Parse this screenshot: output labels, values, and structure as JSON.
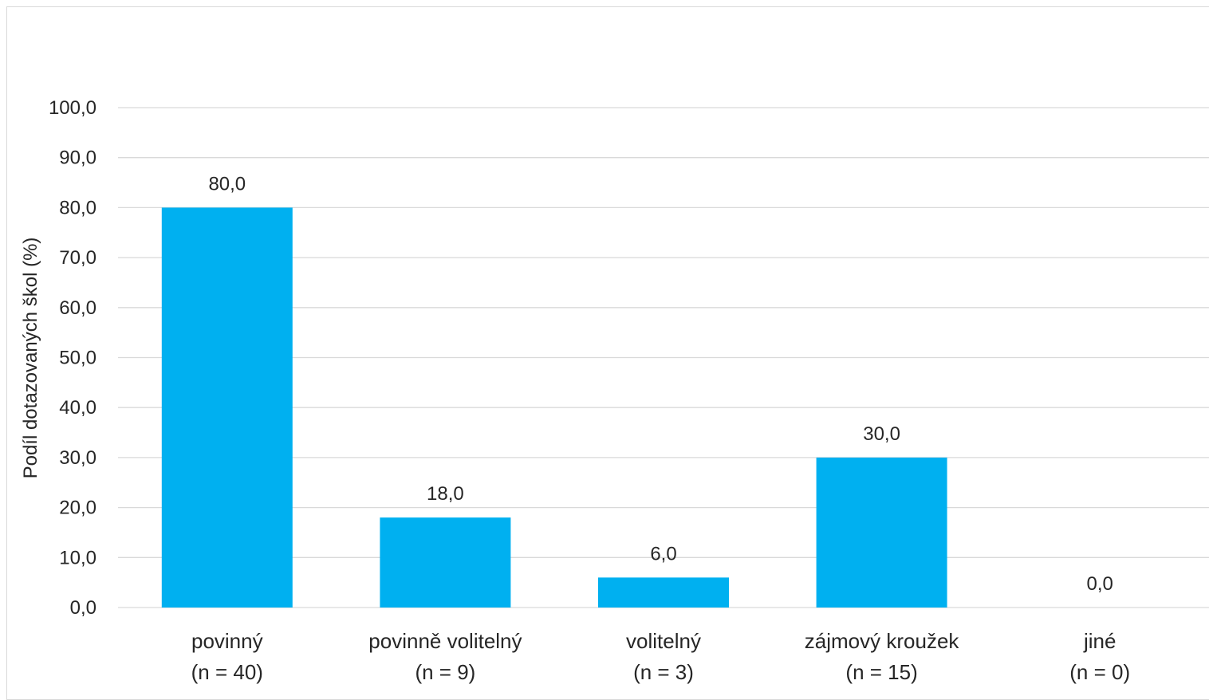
{
  "chart_data": {
    "type": "bar",
    "categories": [
      [
        "povinný",
        "(n = 40)"
      ],
      [
        "povinně volitelný",
        "(n = 9)"
      ],
      [
        "volitelný",
        "(n = 3)"
      ],
      [
        "zájmový kroužek",
        "(n = 15)"
      ],
      [
        "jiné",
        "(n = 0)"
      ]
    ],
    "values": [
      80.0,
      18.0,
      6.0,
      30.0,
      0.0
    ],
    "data_labels": [
      "80,0",
      "18,0",
      "6,0",
      "30,0",
      "0,0"
    ],
    "ylabel": "Podíl dotazovaných škol (%)",
    "ylim": [
      0,
      100
    ],
    "yticks": [
      0,
      10,
      20,
      30,
      40,
      50,
      60,
      70,
      80,
      90,
      100
    ],
    "ytick_labels": [
      "0,0",
      "10,0",
      "20,0",
      "30,0",
      "40,0",
      "50,0",
      "60,0",
      "70,0",
      "80,0",
      "90,0",
      "100,0"
    ],
    "grid": true,
    "bar_color": "#00b0f0",
    "gridline_color": "#d9d9d9"
  }
}
